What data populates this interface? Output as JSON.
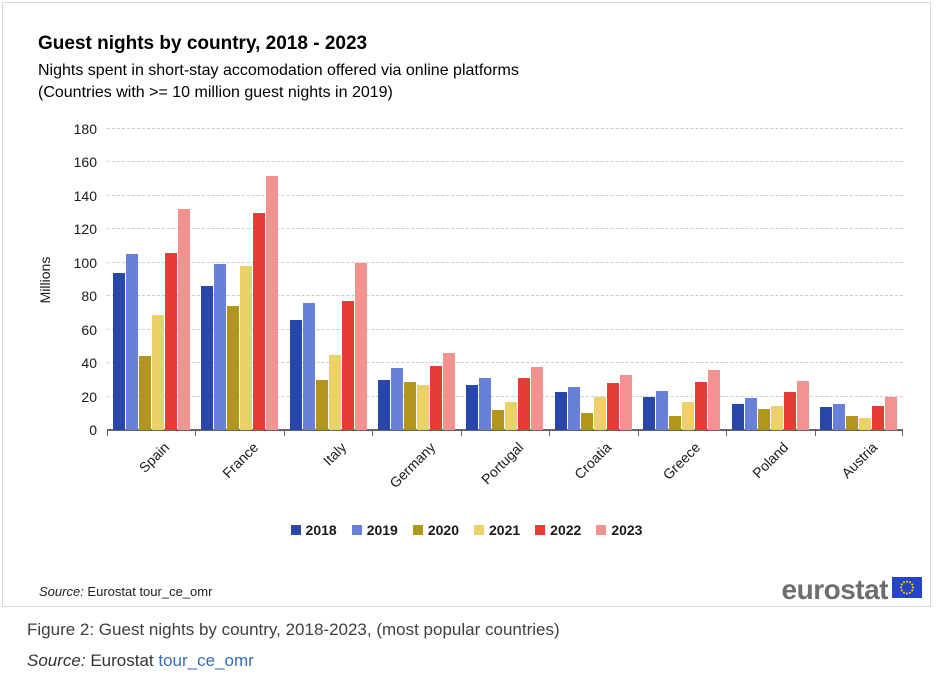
{
  "chart": {
    "title": "Guest nights by country, 2018 - 2023",
    "subtitle_line1": "Nights spent in short-stay accomodation offered via online platforms",
    "subtitle_line2": "(Countries with >= 10 million guest nights in 2019)",
    "source_prefix": "Source:",
    "source_text": " Eurostat tour_ce_omr",
    "logo_text": "eurostat"
  },
  "chart_data": {
    "type": "bar",
    "title": "Guest nights by country, 2018 - 2023",
    "subtitle": "Nights spent in short-stay accomodation offered via online platforms (Countries with >= 10 million guest nights in 2019)",
    "xlabel": "",
    "ylabel": "Millions",
    "ylim": [
      0,
      180
    ],
    "ytick_step": 20,
    "grid": "horizontal-dashed",
    "legend_position": "bottom",
    "categories": [
      "Spain",
      "France",
      "Italy",
      "Germany",
      "Portugal",
      "Croatia",
      "Greece",
      "Poland",
      "Austria"
    ],
    "series": [
      {
        "name": "2018",
        "color": "#2847a8",
        "values": [
          94,
          86,
          66,
          30,
          27,
          22.5,
          20,
          15.5,
          13.5
        ]
      },
      {
        "name": "2019",
        "color": "#6880d8",
        "values": [
          105,
          99,
          76,
          37,
          31,
          25.5,
          23.5,
          19,
          15.5
        ]
      },
      {
        "name": "2020",
        "color": "#b2951c",
        "values": [
          44,
          74,
          30,
          29,
          12,
          10,
          8.5,
          12.5,
          8.5
        ]
      },
      {
        "name": "2021",
        "color": "#ecd169",
        "values": [
          69,
          98,
          45,
          27,
          16.5,
          19.5,
          16.5,
          14.5,
          7
        ]
      },
      {
        "name": "2022",
        "color": "#e73b36",
        "values": [
          106,
          130,
          77,
          38.5,
          31,
          28,
          28.5,
          22.5,
          14.5
        ]
      },
      {
        "name": "2023",
        "color": "#f29390",
        "values": [
          132,
          152,
          100,
          46,
          37.5,
          33,
          36,
          29.5,
          19.5
        ]
      }
    ]
  },
  "caption": {
    "figure_label": "Figure 2: Guest nights by country, 2018-2023, (most popular countries)",
    "source_prefix": "Source:",
    "source_publisher": " Eurostat ",
    "source_link": "tour_ce_omr"
  }
}
